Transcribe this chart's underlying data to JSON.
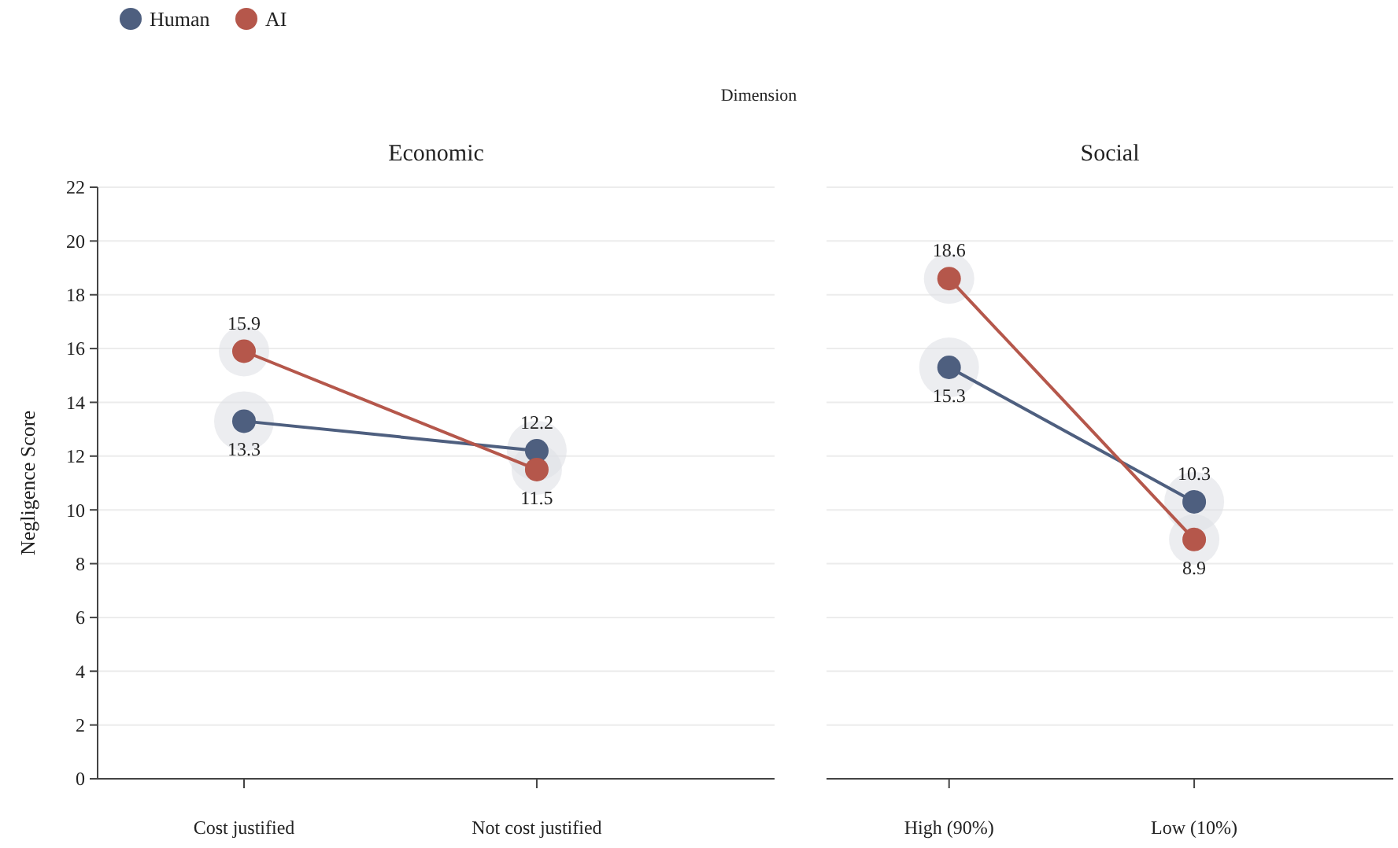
{
  "chart_data": [
    {
      "type": "line",
      "title": "Economic",
      "ylabel": "Negligence Score",
      "annotations": [
        "Dimension"
      ],
      "categories": [
        "Cost justified",
        "Not cost justified"
      ],
      "ylim": [
        0,
        22
      ],
      "yticks": [
        0,
        2,
        4,
        6,
        8,
        10,
        12,
        14,
        16,
        18,
        20,
        22
      ],
      "grid": "y",
      "legend": "top left",
      "marker": "circle",
      "data_labels": true,
      "series": [
        {
          "name": "Human",
          "color": "#4e5f7f",
          "values": [
            13.3,
            12.2
          ]
        },
        {
          "name": "AI",
          "color": "#b5574b",
          "values": [
            15.9,
            11.5
          ]
        }
      ]
    },
    {
      "type": "line",
      "title": "Social",
      "categories": [
        "High (90%)",
        "Low (10%)"
      ],
      "ylim": [
        0,
        22
      ],
      "yticks": [
        0,
        2,
        4,
        6,
        8,
        10,
        12,
        14,
        16,
        18,
        20,
        22
      ],
      "grid": "y",
      "tick_labels": "x",
      "marker": "circle",
      "data_labels": true,
      "series": [
        {
          "color": "#4e5f7f",
          "values": [
            15.3,
            10.3
          ]
        },
        {
          "color": "#b5574b",
          "values": [
            18.6,
            8.9
          ]
        }
      ]
    }
  ]
}
